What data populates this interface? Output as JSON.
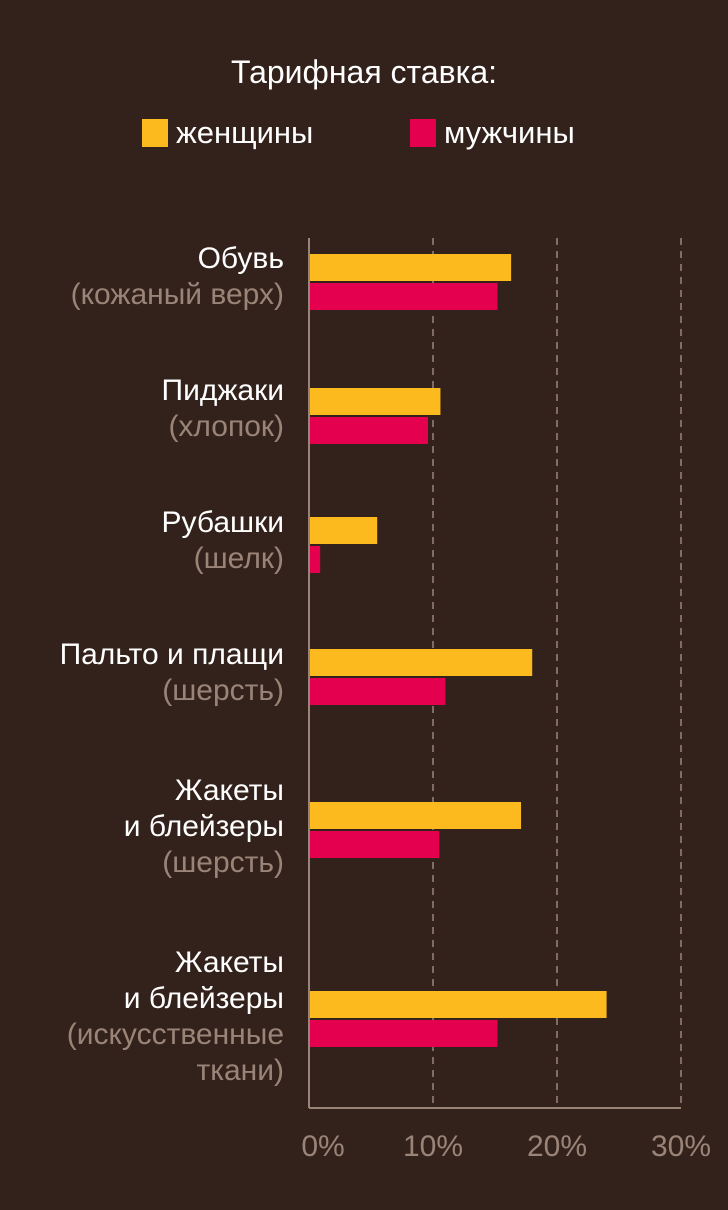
{
  "chart_data": {
    "type": "bar",
    "orientation": "horizontal",
    "title": "Тарифная ставка:",
    "categories": [
      {
        "name": [
          "Обувь"
        ],
        "sub": [
          "(кожаный верх)"
        ]
      },
      {
        "name": [
          "Пиджаки"
        ],
        "sub": [
          "(хлопок)"
        ]
      },
      {
        "name": [
          "Рубашки"
        ],
        "sub": [
          "(шелк)"
        ]
      },
      {
        "name": [
          "Пальто и плащи"
        ],
        "sub": [
          "(шерсть)"
        ]
      },
      {
        "name": [
          "Жакеты",
          "и блейзеры"
        ],
        "sub": [
          "(шерсть)"
        ]
      },
      {
        "name": [
          "Жакеты",
          "и блейзеры"
        ],
        "sub": [
          "(искусственные",
          "ткани)"
        ]
      }
    ],
    "series": [
      {
        "name": "женщины",
        "color": "#fdba1f",
        "values": [
          16.3,
          10.6,
          5.5,
          18.0,
          17.1,
          24.0
        ]
      },
      {
        "name": "мужчины",
        "color": "#e4004f",
        "values": [
          15.2,
          9.6,
          0.9,
          11.0,
          10.5,
          15.2
        ]
      }
    ],
    "xlim": [
      0,
      30
    ],
    "xticks": [
      "0%",
      "10%",
      "20%",
      "30%"
    ],
    "grid": "vertical dashed",
    "legend": "top"
  }
}
